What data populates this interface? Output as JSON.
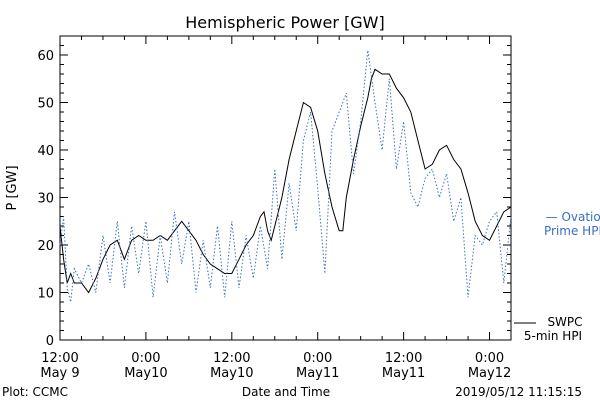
{
  "footer": {
    "plot_label": "Plot: CCMC",
    "timestamp": "2019/05/12 11:15:15"
  },
  "colors": {
    "swpc": "#000000",
    "ovation": "#3a6fc4",
    "background": "#ffffff"
  },
  "chart_data": {
    "type": "line",
    "title": "Hemispheric Power [GW]",
    "xlabel": "Date and Time",
    "ylabel": "P [GW]",
    "x_unit": "hours since May 9 12:00",
    "xlim": [
      0,
      63
    ],
    "ylim": [
      0,
      64
    ],
    "y_ticks": [
      0,
      10,
      20,
      30,
      40,
      50,
      60
    ],
    "x_ticks": [
      {
        "x": 0,
        "line1": "12:00",
        "line2": "May 9"
      },
      {
        "x": 12,
        "line1": "0:00",
        "line2": "May10"
      },
      {
        "x": 24,
        "line1": "12:00",
        "line2": "May10"
      },
      {
        "x": 36,
        "line1": "0:00",
        "line2": "May11"
      },
      {
        "x": 48,
        "line1": "12:00",
        "line2": "May11"
      },
      {
        "x": 60,
        "line1": "0:00",
        "line2": "May12"
      }
    ],
    "legend_placement": "right",
    "series": [
      {
        "name": "SWPC 5-min HPI",
        "name_line1": "SWPC",
        "name_line2": "5-min HPI",
        "style": "solid",
        "points": [
          [
            0,
            24
          ],
          [
            0.5,
            17
          ],
          [
            1,
            12
          ],
          [
            1.5,
            14
          ],
          [
            2,
            12
          ],
          [
            3,
            12
          ],
          [
            4,
            10
          ],
          [
            5,
            13
          ],
          [
            6,
            17
          ],
          [
            7,
            20
          ],
          [
            8,
            21
          ],
          [
            9,
            17
          ],
          [
            10,
            21
          ],
          [
            11,
            22
          ],
          [
            12,
            21
          ],
          [
            13,
            21
          ],
          [
            14,
            22
          ],
          [
            15,
            21
          ],
          [
            16,
            23
          ],
          [
            17,
            25
          ],
          [
            18,
            23
          ],
          [
            19,
            21
          ],
          [
            20,
            18
          ],
          [
            21,
            16
          ],
          [
            22,
            15
          ],
          [
            23,
            14
          ],
          [
            24,
            14
          ],
          [
            25,
            17
          ],
          [
            26,
            20
          ],
          [
            27,
            22
          ],
          [
            28,
            26
          ],
          [
            28.5,
            27
          ],
          [
            29,
            23
          ],
          [
            29.5,
            21
          ],
          [
            30,
            24
          ],
          [
            31,
            30
          ],
          [
            32,
            38
          ],
          [
            33,
            44
          ],
          [
            33.5,
            47
          ],
          [
            34,
            50
          ],
          [
            35,
            49
          ],
          [
            36,
            44
          ],
          [
            37,
            35
          ],
          [
            38,
            28
          ],
          [
            39,
            23
          ],
          [
            39.5,
            23
          ],
          [
            40,
            30
          ],
          [
            41,
            38
          ],
          [
            42,
            45
          ],
          [
            43,
            51
          ],
          [
            43.5,
            55
          ],
          [
            44,
            57
          ],
          [
            45,
            56
          ],
          [
            46,
            56
          ],
          [
            47,
            53
          ],
          [
            48,
            51
          ],
          [
            49,
            48
          ],
          [
            50,
            42
          ],
          [
            51,
            36
          ],
          [
            52,
            37
          ],
          [
            53,
            40
          ],
          [
            54,
            41
          ],
          [
            55,
            38
          ],
          [
            56,
            36
          ],
          [
            57,
            31
          ],
          [
            58,
            25
          ],
          [
            59,
            22
          ],
          [
            60,
            21
          ],
          [
            61,
            24
          ],
          [
            62,
            27
          ],
          [
            63,
            28
          ]
        ]
      },
      {
        "name": "Ovation Prime HPI",
        "name_line1": "— Ovation",
        "name_line2": "Prime HPI",
        "style": "dotted",
        "points": [
          [
            0,
            20
          ],
          [
            0.5,
            26
          ],
          [
            1,
            11
          ],
          [
            1.5,
            8
          ],
          [
            2,
            15
          ],
          [
            3,
            12
          ],
          [
            4,
            16
          ],
          [
            5,
            10
          ],
          [
            6,
            22
          ],
          [
            7,
            12
          ],
          [
            8,
            25
          ],
          [
            9,
            11
          ],
          [
            10,
            24
          ],
          [
            11,
            14
          ],
          [
            12,
            25
          ],
          [
            13,
            9
          ],
          [
            14,
            22
          ],
          [
            15,
            12
          ],
          [
            16,
            27
          ],
          [
            17,
            16
          ],
          [
            18,
            25
          ],
          [
            19,
            10
          ],
          [
            20,
            21
          ],
          [
            21,
            11
          ],
          [
            22,
            24
          ],
          [
            23,
            9
          ],
          [
            24,
            25
          ],
          [
            25,
            11
          ],
          [
            26,
            22
          ],
          [
            27,
            13
          ],
          [
            28,
            24
          ],
          [
            29,
            15
          ],
          [
            30,
            36
          ],
          [
            31,
            17
          ],
          [
            32,
            33
          ],
          [
            33,
            23
          ],
          [
            34,
            42
          ],
          [
            35,
            48
          ],
          [
            36,
            32
          ],
          [
            37,
            14
          ],
          [
            38,
            44
          ],
          [
            39,
            48
          ],
          [
            40,
            52
          ],
          [
            41,
            35
          ],
          [
            42,
            46
          ],
          [
            43,
            61
          ],
          [
            44,
            50
          ],
          [
            45,
            40
          ],
          [
            46,
            55
          ],
          [
            47,
            36
          ],
          [
            48,
            46
          ],
          [
            49,
            31
          ],
          [
            50,
            28
          ],
          [
            51,
            34
          ],
          [
            52,
            36
          ],
          [
            53,
            30
          ],
          [
            54,
            35
          ],
          [
            55,
            25
          ],
          [
            56,
            30
          ],
          [
            57,
            9
          ],
          [
            58,
            22
          ],
          [
            59,
            20
          ],
          [
            60,
            25
          ],
          [
            61,
            27
          ],
          [
            62,
            12
          ],
          [
            63,
            26
          ]
        ]
      }
    ]
  }
}
